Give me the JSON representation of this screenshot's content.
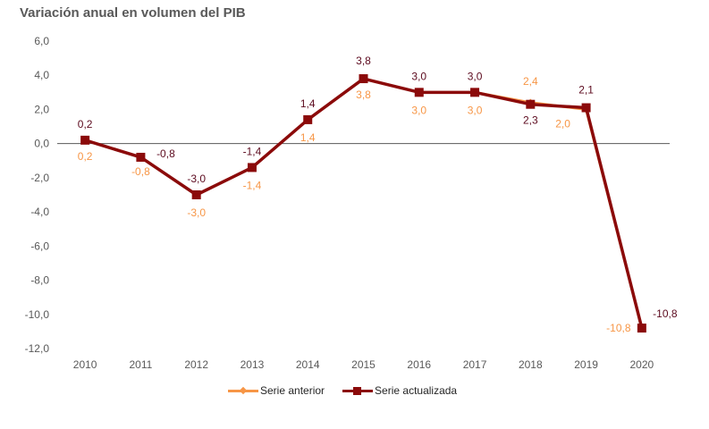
{
  "chart_data": {
    "type": "line",
    "title": "Variación anual en volumen del PIB",
    "xlabel": "",
    "ylabel": "",
    "categories": [
      "2010",
      "2011",
      "2012",
      "2013",
      "2014",
      "2015",
      "2016",
      "2017",
      "2018",
      "2019",
      "2020"
    ],
    "ylim": [
      -12.0,
      6.0
    ],
    "yticks": [
      6.0,
      4.0,
      2.0,
      0.0,
      -2.0,
      -4.0,
      -6.0,
      -8.0,
      -10.0,
      -12.0
    ],
    "ytick_labels": [
      "6,0",
      "4,0",
      "2,0",
      "0,0",
      "-2,0",
      "-4,0",
      "-6,0",
      "-8,0",
      "-10,0",
      "-12,0"
    ],
    "grid": false,
    "zero_line": true,
    "legend_position": "bottom",
    "series": [
      {
        "name": "Serie anterior",
        "color": "#F79646",
        "marker": "diamond",
        "values": [
          0.2,
          -0.8,
          -3.0,
          -1.4,
          1.4,
          3.8,
          3.0,
          3.0,
          2.4,
          2.0,
          -10.8
        ],
        "labels": [
          "0,2",
          "-0,8",
          "-3,0",
          "-1,4",
          "1,4",
          "3,8",
          "3,0",
          "3,0",
          "2,4",
          "2,0",
          "-10,8"
        ]
      },
      {
        "name": "Serie actualizada",
        "color": "#8B0A0A",
        "marker": "square",
        "values": [
          0.2,
          -0.8,
          -3.0,
          -1.4,
          1.4,
          3.8,
          3.0,
          3.0,
          2.3,
          2.1,
          -10.8
        ],
        "labels": [
          "0,2",
          "-0,8",
          "-3,0",
          "-1,4",
          "1,4",
          "3,8",
          "3,0",
          "3,0",
          "2,3",
          "2,1",
          "-10,8"
        ]
      }
    ]
  }
}
